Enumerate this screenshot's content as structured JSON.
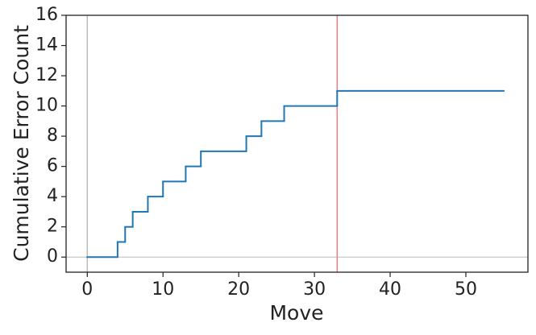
{
  "chart_data": {
    "type": "step",
    "xlabel": "Move",
    "ylabel": "Cumulative Error Count",
    "x": [
      0,
      4,
      5,
      6,
      8,
      10,
      13,
      15,
      21,
      23,
      26,
      33,
      55
    ],
    "series": [
      {
        "color": "#1f77b4",
        "values": [
          0,
          1,
          2,
          3,
          4,
          5,
          6,
          7,
          8,
          9,
          10,
          11,
          11
        ]
      }
    ],
    "xlim": [
      -2.8,
      58.2
    ],
    "xticks": [
      0,
      10,
      20,
      30,
      40,
      50
    ],
    "ylim": [
      -1,
      16
    ],
    "yticks": [
      0,
      2,
      4,
      6,
      8,
      10,
      12,
      14,
      16
    ],
    "grid": false,
    "hlines": [
      {
        "y": 0,
        "color": "#bbbbbb"
      }
    ],
    "vlines": [
      {
        "x": 0,
        "color": "#bbbbbb"
      },
      {
        "x": 33,
        "color": "#f08080"
      }
    ]
  }
}
